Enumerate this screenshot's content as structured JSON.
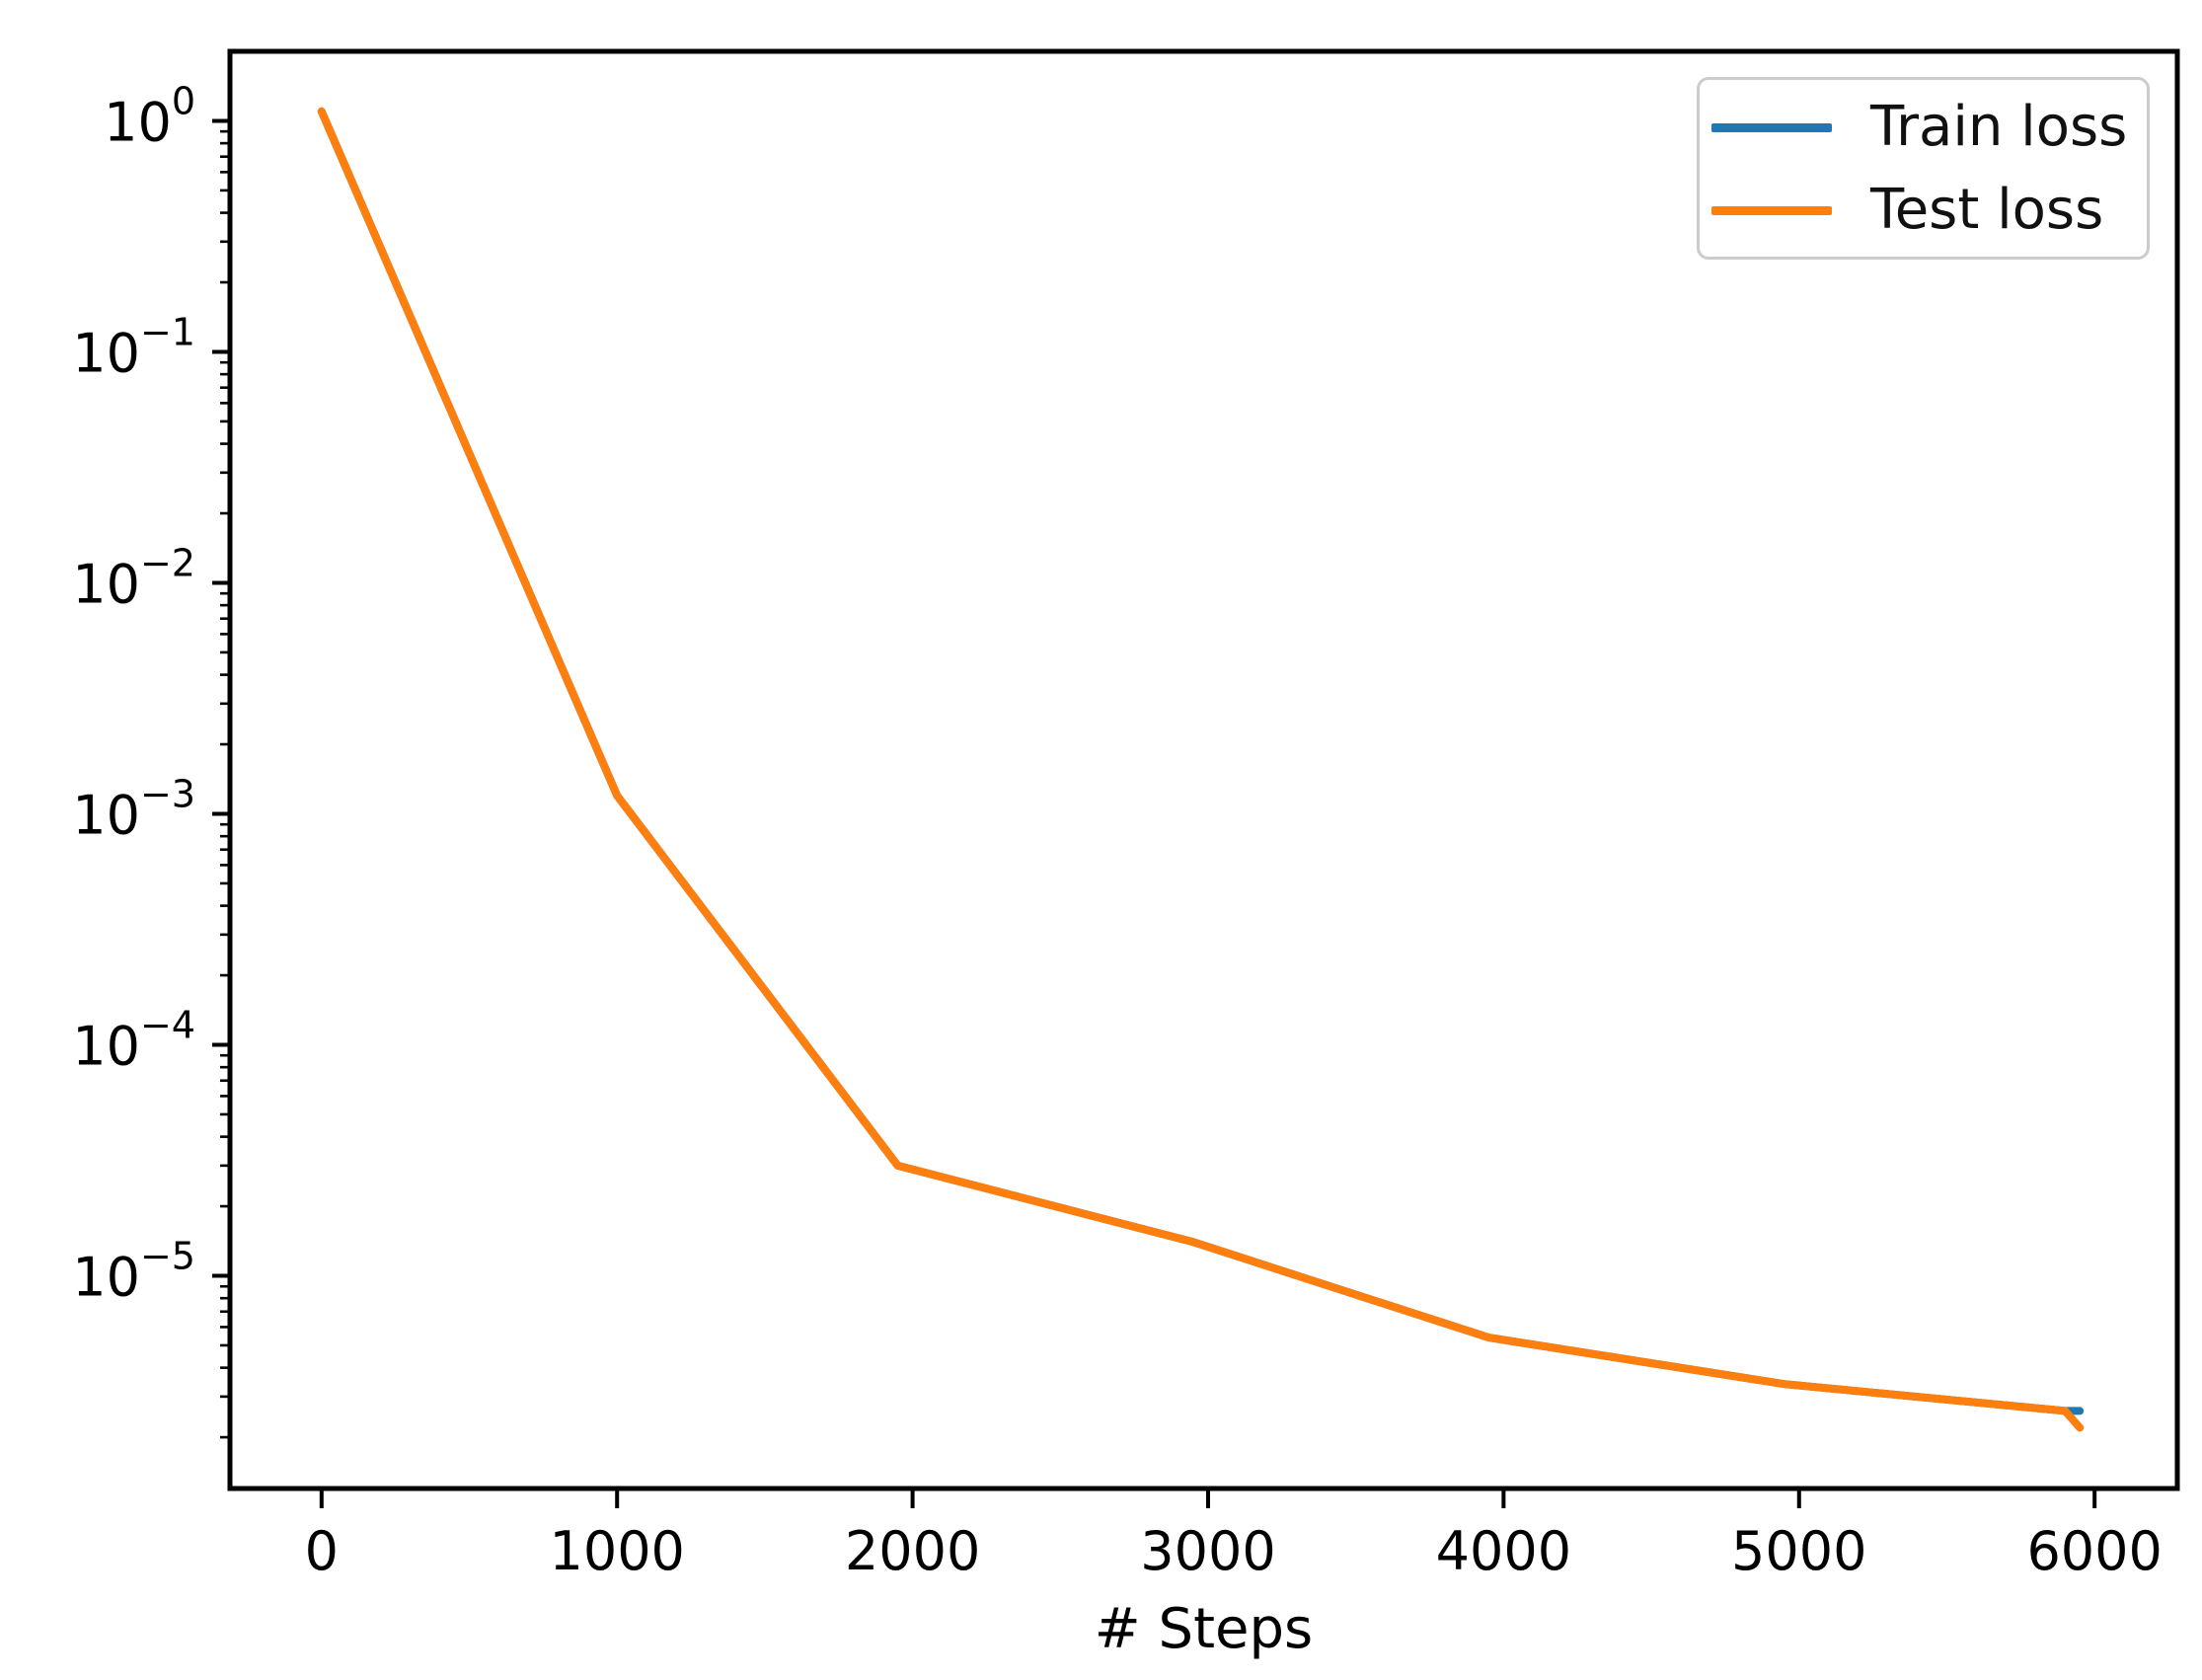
{
  "chart_data": {
    "type": "line",
    "title": "",
    "xlabel": "# Steps",
    "ylabel": "",
    "x_scale": "linear",
    "y_scale": "log",
    "xlim": [
      -310,
      6280
    ],
    "ylim": [
      1.2e-06,
      2.0
    ],
    "grid": false,
    "legend_position": "upper right",
    "x_ticks": [
      0,
      1000,
      2000,
      3000,
      4000,
      5000,
      6000
    ],
    "y_tick_exponents": [
      0,
      -1,
      -2,
      -3,
      -4,
      -5
    ],
    "x": [
      0,
      1000,
      1950,
      2950,
      3950,
      4950,
      5900,
      5950
    ],
    "series": [
      {
        "name": "Train loss",
        "color": "#1f77b4",
        "values": [
          1.1,
          0.0012,
          3e-05,
          1.4e-05,
          5.4e-06,
          3.4e-06,
          2.6e-06,
          2.6e-06
        ]
      },
      {
        "name": "Test loss",
        "color": "#ff7f0e",
        "values": [
          1.1,
          0.0012,
          3e-05,
          1.4e-05,
          5.4e-06,
          3.4e-06,
          2.6e-06,
          2.2e-06
        ]
      }
    ]
  },
  "legend": {
    "items": [
      {
        "label": "Train loss",
        "color": "#1f77b4"
      },
      {
        "label": "Test loss",
        "color": "#ff7f0e"
      }
    ]
  },
  "axes": {
    "x_label": "# Steps"
  },
  "colors": {
    "train": "#1f77b4",
    "test": "#ff7f0e",
    "spine": "#000000",
    "legend_border": "#cccccc"
  }
}
